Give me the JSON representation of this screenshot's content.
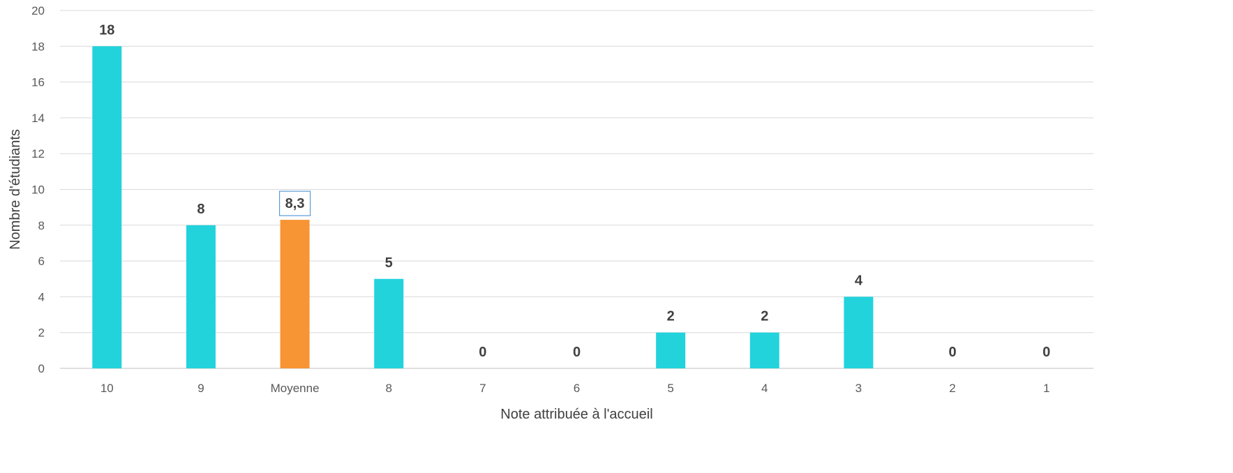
{
  "chart_data": {
    "type": "bar",
    "title": "",
    "xlabel": "Note attribuée à l'accueil",
    "ylabel": "Nombre d'étudiants",
    "ylim": [
      0,
      20
    ],
    "yticks": [
      0,
      2,
      4,
      6,
      8,
      10,
      12,
      14,
      16,
      18,
      20
    ],
    "grid": true,
    "legend": "none",
    "categories": [
      "10",
      "9",
      "Moyenne",
      "8",
      "7",
      "6",
      "5",
      "4",
      "3",
      "2",
      "1"
    ],
    "values": [
      18,
      8,
      8.3,
      5,
      0,
      0,
      2,
      2,
      4,
      0,
      0
    ],
    "data_labels": [
      "18",
      "8",
      "8,3",
      "5",
      "0",
      "0",
      "2",
      "2",
      "4",
      "0",
      "0"
    ],
    "highlight_category": "Moyenne",
    "colors": {
      "bar": "#22d3dc",
      "highlight": "#f79433",
      "highlight_label_border": "#5b9bd5"
    }
  }
}
